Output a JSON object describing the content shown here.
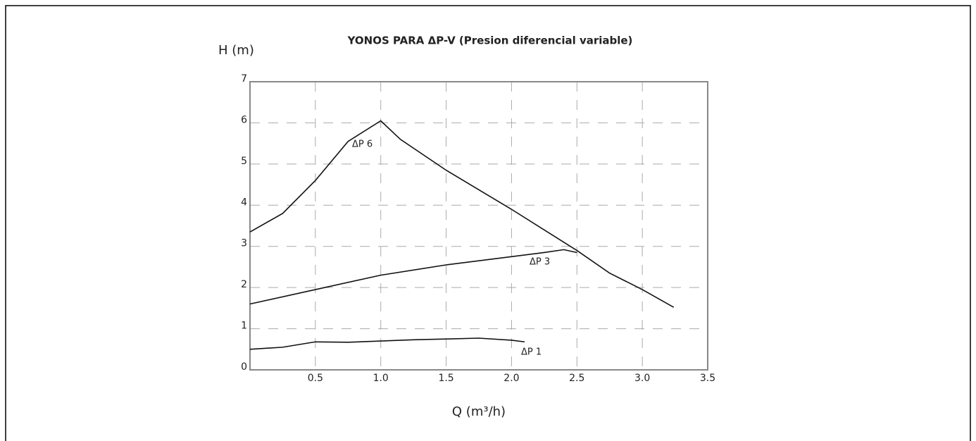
{
  "chart_data": {
    "type": "line",
    "title": "YONOS PARA ΔP-V (Presion diferencial variable)",
    "y_label": "H (m)",
    "x_label": "Q (m³/h)",
    "xlim": [
      0,
      3.5
    ],
    "ylim": [
      0,
      7
    ],
    "xticks": [
      0.5,
      {
        "value": 1,
        "label": "1.0"
      },
      1.5,
      {
        "value": 2,
        "label": "2.0"
      },
      2.5,
      {
        "value": 3,
        "label": "3.0"
      },
      3.5
    ],
    "yticks": [
      0,
      1,
      2,
      3,
      4,
      5,
      6,
      7
    ],
    "grid": true,
    "series": [
      {
        "name": "ΔP 6",
        "color": "#111111",
        "x": [
          0,
          0.25,
          0.5,
          0.75,
          1.0,
          1.15,
          1.5,
          2.0,
          2.5,
          2.75,
          3.0,
          3.24
        ],
        "values": [
          3.35,
          3.8,
          4.6,
          5.55,
          6.05,
          5.6,
          4.85,
          3.9,
          2.9,
          2.35,
          1.95,
          1.52
        ]
      },
      {
        "name": "ΔP 3",
        "color": "#111111",
        "x": [
          0,
          0.5,
          1.0,
          1.5,
          2.0,
          2.25,
          2.4,
          2.5
        ],
        "values": [
          1.6,
          1.95,
          2.3,
          2.55,
          2.75,
          2.85,
          2.92,
          2.85
        ]
      },
      {
        "name": "ΔP 1",
        "color": "#111111",
        "x": [
          0,
          0.25,
          0.5,
          0.75,
          1.0,
          1.25,
          1.5,
          1.75,
          2.0,
          2.1
        ],
        "values": [
          0.5,
          0.55,
          0.68,
          0.67,
          0.7,
          0.73,
          0.75,
          0.77,
          0.72,
          0.68
        ]
      }
    ]
  }
}
